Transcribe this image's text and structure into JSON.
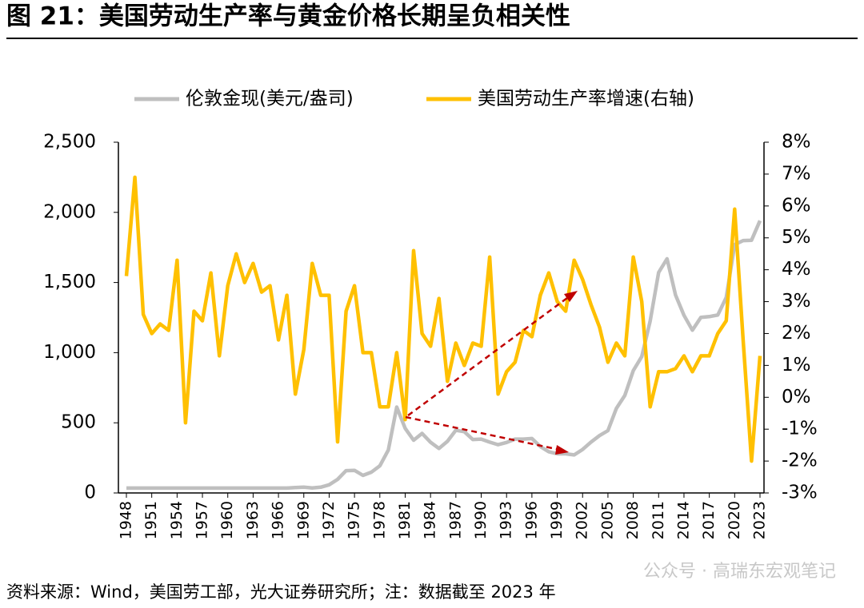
{
  "chart_data": {
    "type": "line",
    "title": "图 21：美国劳动生产率与黄金价格长期呈负相关性",
    "source": "资料来源：Wind，美国劳工部，光大证券研究所；注：数据截至 2023 年",
    "watermark": "公众号 · 高瑞东宏观笔记",
    "categories": [
      "1948",
      null,
      null,
      "1951",
      null,
      null,
      "1954",
      null,
      null,
      "1957",
      null,
      null,
      "1960",
      null,
      null,
      "1963",
      null,
      null,
      "1966",
      null,
      null,
      "1969",
      null,
      null,
      "1972",
      null,
      null,
      "1975",
      null,
      null,
      "1978",
      null,
      null,
      "1981",
      null,
      null,
      "1984",
      null,
      null,
      "1987",
      null,
      null,
      "1990",
      null,
      null,
      "1993",
      null,
      null,
      "1996",
      null,
      null,
      "1999",
      null,
      null,
      "2002",
      null,
      null,
      "2005",
      null,
      null,
      "2008",
      null,
      null,
      "2011",
      null,
      null,
      "2014",
      null,
      null,
      "2017",
      null,
      null,
      "2020",
      null,
      null,
      "2023"
    ],
    "series": [
      {
        "name": "伦敦金现(美元/盎司)",
        "color": "#bfbfbf",
        "axis": "y",
        "values": [
          35,
          35,
          35,
          35,
          35,
          35,
          35,
          35,
          35,
          35,
          35,
          35,
          35,
          35,
          35,
          35,
          35,
          35,
          35,
          35,
          39,
          41,
          36,
          41,
          58,
          97,
          159,
          161,
          125,
          148,
          193,
          306,
          612,
          460,
          376,
          424,
          361,
          317,
          368,
          447,
          437,
          381,
          384,
          362,
          344,
          360,
          384,
          384,
          388,
          331,
          294,
          279,
          279,
          271,
          310,
          363,
          409,
          444,
          603,
          695,
          872,
          972,
          1225,
          1572,
          1669,
          1411,
          1266,
          1160,
          1251,
          1257,
          1268,
          1393,
          1770,
          1799,
          1801,
          1941
        ]
      },
      {
        "name": "美国劳动生产率增速(右轴)",
        "color": "#ffc000",
        "axis": "y2",
        "values": [
          3.8,
          6.9,
          2.6,
          2.0,
          2.3,
          2.1,
          4.3,
          -0.8,
          2.7,
          2.4,
          3.9,
          1.3,
          3.5,
          4.5,
          3.6,
          4.2,
          3.3,
          3.5,
          1.8,
          3.2,
          0.1,
          1.5,
          4.2,
          3.2,
          3.2,
          -1.4,
          2.7,
          3.5,
          1.4,
          1.4,
          -0.3,
          -0.3,
          1.4,
          -0.7,
          4.6,
          2.0,
          1.6,
          3.1,
          0.5,
          1.7,
          1.0,
          1.7,
          1.6,
          4.4,
          0.1,
          0.8,
          1.1,
          2.1,
          1.9,
          3.2,
          3.9,
          3.0,
          2.7,
          4.3,
          3.7,
          2.9,
          2.2,
          1.1,
          1.7,
          1.3,
          4.4,
          3.0,
          -0.3,
          0.8,
          0.8,
          0.9,
          1.3,
          0.8,
          1.3,
          1.3,
          2.0,
          2.4,
          5.9,
          1.8,
          -2.0,
          1.3
        ]
      }
    ],
    "ylim": [
      0,
      2500
    ],
    "yticks": [
      0,
      {
        "value": 500,
        "label": "500"
      },
      {
        "value": 1000,
        "label": "1,000"
      },
      {
        "value": 1500,
        "label": "1,500"
      },
      {
        "value": 2000,
        "label": "2,000"
      },
      {
        "value": 2500,
        "label": "2,500"
      }
    ],
    "y2lim": [
      -3,
      8
    ],
    "y2ticks": [
      {
        "value": -3,
        "label": "-3%"
      },
      {
        "value": -2,
        "label": "-2%"
      },
      {
        "value": -1,
        "label": "-1%"
      },
      {
        "value": 0,
        "label": "0%"
      },
      {
        "value": 1,
        "label": "1%"
      },
      {
        "value": 2,
        "label": "2%"
      },
      {
        "value": 3,
        "label": "3%"
      },
      {
        "value": 4,
        "label": "4%"
      },
      {
        "value": 5,
        "label": "5%"
      },
      {
        "value": 6,
        "label": "6%"
      },
      {
        "value": 7,
        "label": "7%"
      },
      {
        "value": 8,
        "label": "8%"
      }
    ],
    "grid": false,
    "legend": "top"
  }
}
